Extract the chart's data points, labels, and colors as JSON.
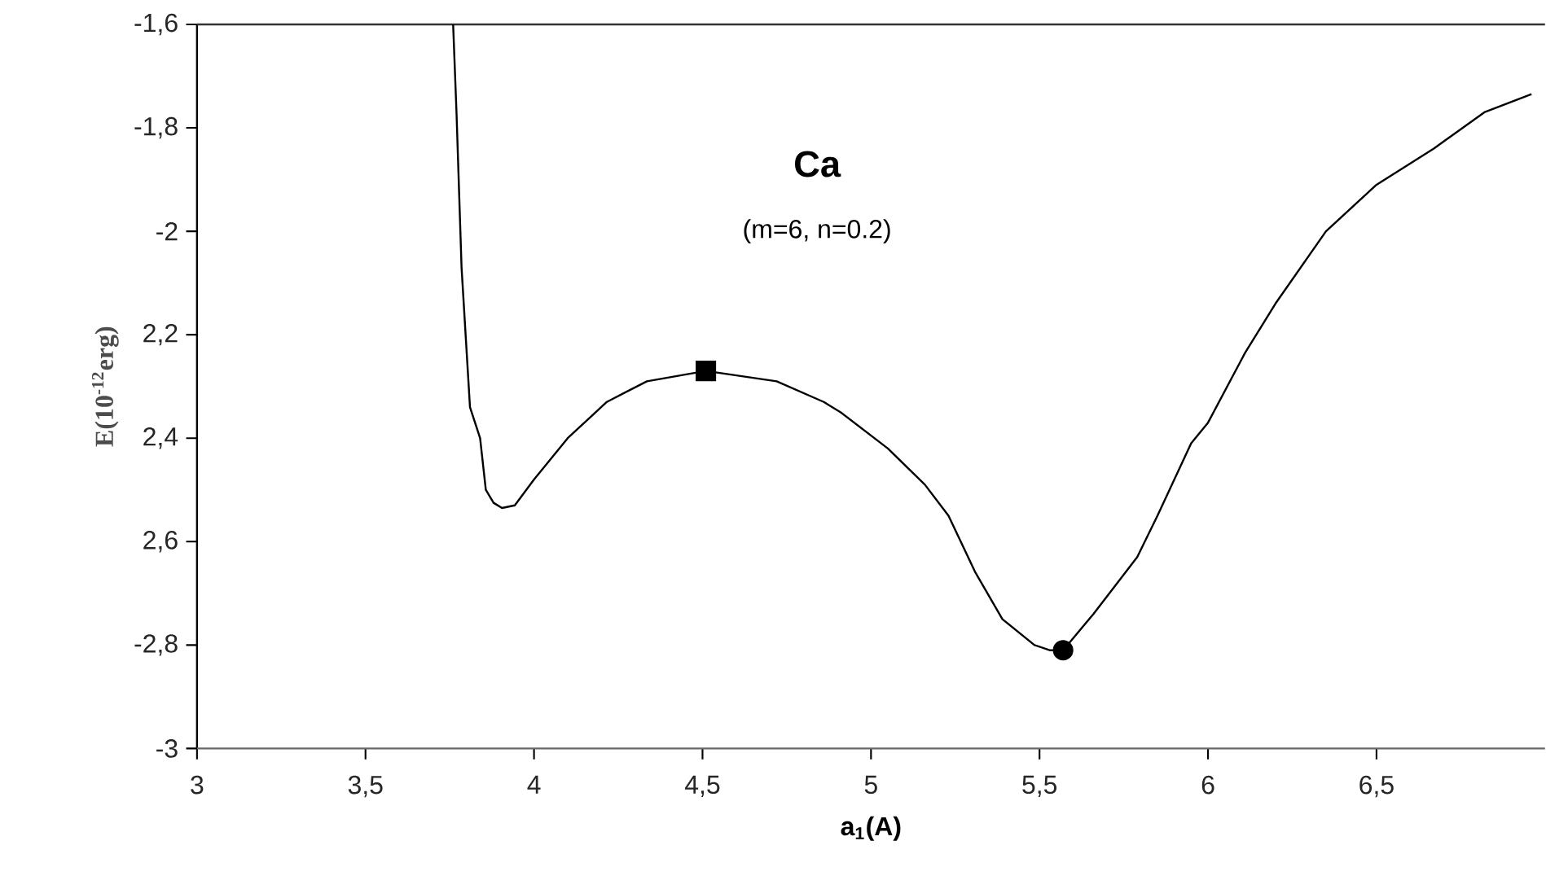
{
  "chart_data": {
    "type": "line",
    "xlabel": "a$_{1}$(A)",
    "ylabel": "E(10$^{-12}$erg)",
    "annotations": [
      "Ca",
      "(m=6, n=0.2)"
    ],
    "xlim": [
      3,
      7
    ],
    "ylim": [
      -3,
      -1.6
    ],
    "xticks": [
      {
        "value": 3,
        "label": "3"
      },
      {
        "value": 3.5,
        "label": "3,5"
      },
      {
        "value": 4,
        "label": "4"
      },
      {
        "value": 4.5,
        "label": "4,5"
      },
      {
        "value": 5,
        "label": "5"
      },
      {
        "value": 5.5,
        "label": "5,5"
      },
      {
        "value": 6,
        "label": "6"
      },
      {
        "value": 6.5,
        "label": "6,5"
      }
    ],
    "yticks": [
      {
        "value": -3,
        "label": "-3"
      },
      {
        "value": -2.8,
        "label": "-2,8"
      },
      {
        "value": -2.6,
        "label": "2,6"
      },
      {
        "value": -2.4,
        "label": "2,4"
      },
      {
        "value": -2.2,
        "label": "2,2"
      },
      {
        "value": -2,
        "label": "-2"
      },
      {
        "value": -1.8,
        "label": "-1,8"
      },
      {
        "value": -1.6,
        "label": "-1,6"
      }
    ],
    "series": [
      {
        "color": "#000000",
        "marker": "none",
        "x": [
          3.76,
          3.77,
          3.785,
          3.81,
          3.84,
          3.857,
          3.88,
          3.905,
          3.943,
          4.0,
          4.05,
          4.1,
          4.216,
          4.335,
          4.51,
          4.72,
          4.86,
          4.91,
          5.05,
          5.16,
          5.23,
          5.31,
          5.39,
          5.485,
          5.53,
          5.57,
          5.66,
          5.79,
          5.85,
          5.95,
          6.0,
          6.11,
          6.2,
          6.35,
          6.5,
          6.67,
          6.82,
          6.96
        ],
        "values": [
          -1.6,
          -1.77,
          -2.07,
          -2.34,
          -2.4,
          -2.5,
          -2.525,
          -2.535,
          -2.53,
          -2.48,
          -2.44,
          -2.4,
          -2.33,
          -2.29,
          -2.27,
          -2.29,
          -2.33,
          -2.35,
          -2.42,
          -2.49,
          -2.55,
          -2.66,
          -2.75,
          -2.8,
          -2.81,
          -2.81,
          -2.74,
          -2.63,
          -2.55,
          -2.41,
          -2.37,
          -2.235,
          -2.14,
          -2.0,
          -1.91,
          -1.84,
          -1.77,
          -1.735
        ]
      },
      {
        "type": "scatter",
        "color": "#000000",
        "marker": "square",
        "x": [
          4.51
        ],
        "values": [
          -2.27
        ]
      },
      {
        "type": "scatter",
        "color": "#000000",
        "marker": "circle",
        "x": [
          5.57
        ],
        "values": [
          -2.81
        ]
      }
    ]
  }
}
